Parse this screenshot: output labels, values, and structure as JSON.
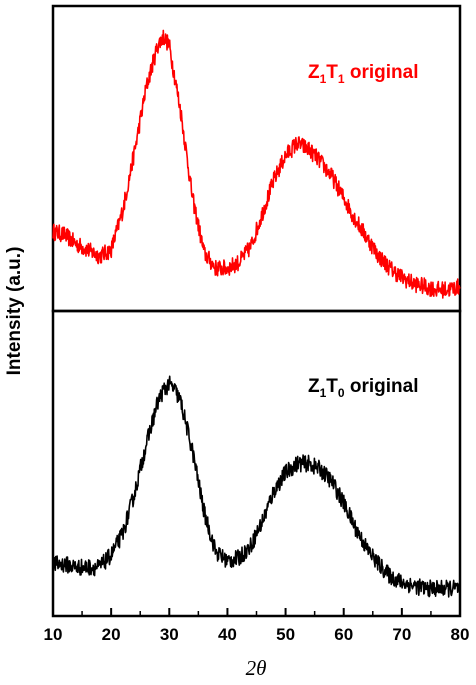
{
  "chart_data": {
    "type": "line",
    "xlabel_symbol": "2θ",
    "ylabel": "Intensity (a.u.)",
    "xlim": [
      10,
      80
    ],
    "xticks": [
      "10",
      "20",
      "30",
      "40",
      "50",
      "60",
      "70",
      "80"
    ],
    "grid": false,
    "y_ticks_shown": false,
    "panels": [
      {
        "position": "top",
        "series": [
          {
            "name_parts": [
              "Z",
              "1",
              "T",
              "1",
              " original"
            ],
            "color": "#ff0000",
            "x": [
              10,
              12,
              14,
              16,
              18,
              20,
              22,
              24,
              26,
              28,
              29,
              30,
              32,
              34,
              36,
              38,
              40,
              42,
              44,
              46,
              48,
              50,
              52,
              54,
              56,
              58,
              60,
              62,
              64,
              66,
              68,
              70,
              72,
              74,
              76,
              78,
              80
            ],
            "y": [
              0.26,
              0.25,
              0.22,
              0.2,
              0.18,
              0.2,
              0.33,
              0.52,
              0.73,
              0.87,
              0.9,
              0.87,
              0.65,
              0.37,
              0.19,
              0.14,
              0.14,
              0.16,
              0.21,
              0.32,
              0.43,
              0.51,
              0.55,
              0.53,
              0.49,
              0.44,
              0.37,
              0.3,
              0.24,
              0.18,
              0.14,
              0.11,
              0.09,
              0.08,
              0.07,
              0.07,
              0.08
            ]
          }
        ]
      },
      {
        "position": "bottom",
        "series": [
          {
            "name_parts": [
              "Z",
              "1",
              "T",
              "0",
              " original"
            ],
            "color": "#000000",
            "x": [
              10,
              12,
              14,
              16,
              18,
              20,
              22,
              24,
              26,
              28,
              29,
              30,
              31,
              32,
              34,
              36,
              38,
              40,
              42,
              44,
              46,
              48,
              50,
              52,
              54,
              56,
              58,
              60,
              62,
              64,
              66,
              68,
              70,
              72,
              74,
              76,
              78,
              80
            ],
            "y": [
              0.17,
              0.17,
              0.16,
              0.16,
              0.16,
              0.2,
              0.27,
              0.4,
              0.56,
              0.7,
              0.74,
              0.76,
              0.74,
              0.7,
              0.54,
              0.34,
              0.21,
              0.18,
              0.19,
              0.23,
              0.31,
              0.41,
              0.47,
              0.5,
              0.5,
              0.48,
              0.44,
              0.37,
              0.29,
              0.22,
              0.17,
              0.13,
              0.11,
              0.1,
              0.09,
              0.09,
              0.09,
              0.09
            ]
          }
        ]
      }
    ]
  }
}
